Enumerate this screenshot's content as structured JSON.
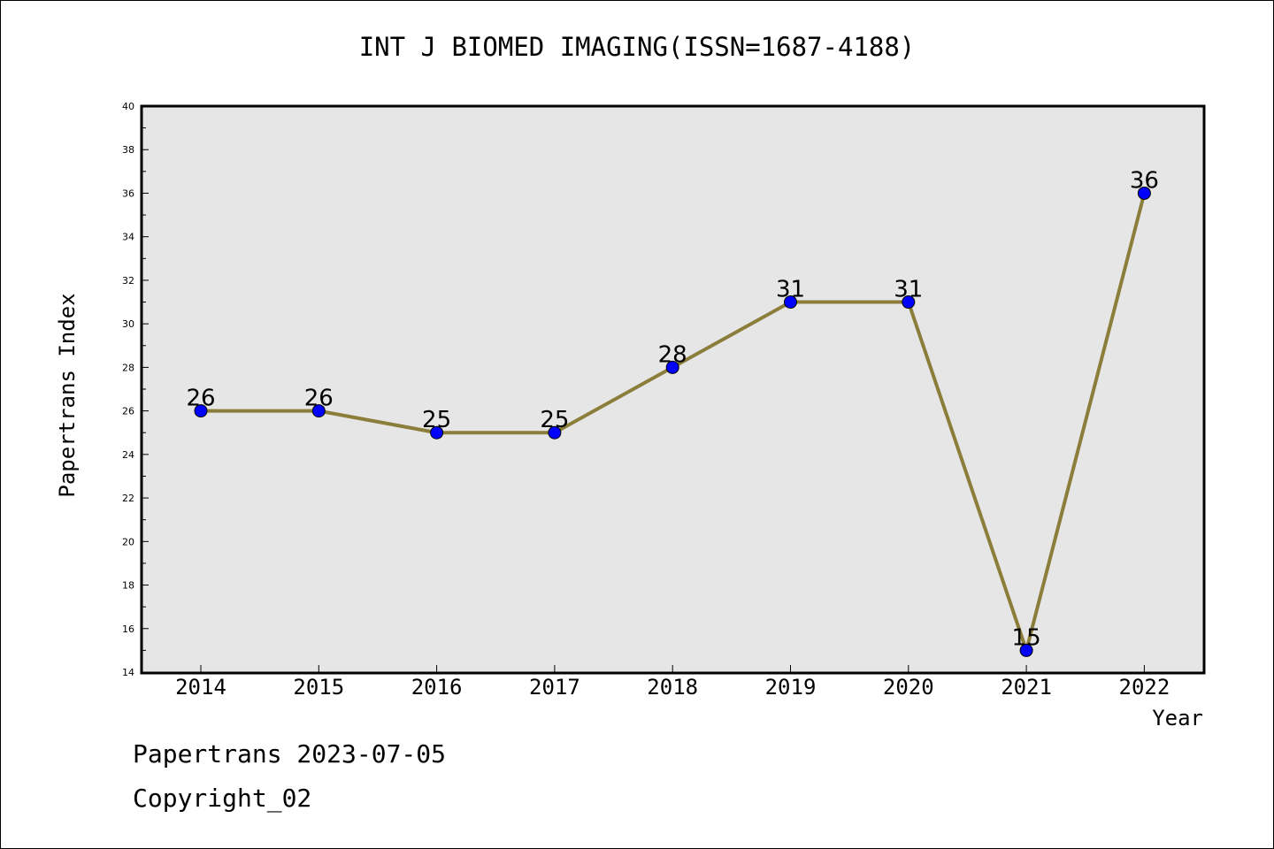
{
  "chart_data": {
    "type": "line",
    "title": "INT J BIOMED IMAGING(ISSN=1687-4188)",
    "xlabel": "Year",
    "ylabel": "Papertrans Index",
    "categories": [
      "2014",
      "2015",
      "2016",
      "2017",
      "2018",
      "2019",
      "2020",
      "2021",
      "2022"
    ],
    "series": [
      {
        "values": [
          26,
          26,
          25,
          25,
          28,
          31,
          31,
          15,
          36
        ]
      }
    ],
    "ylim": [
      14,
      40
    ],
    "yticks": [
      "14",
      "16",
      "18",
      "20",
      "22",
      "24",
      "26",
      "28",
      "30",
      "32",
      "34",
      "36",
      "38",
      "40"
    ],
    "data_labels": [
      "26",
      "26",
      "25",
      "25",
      "28",
      "31",
      "31",
      "15",
      "36"
    ],
    "grid": false,
    "colors": {
      "line": "#8B7D3A",
      "marker": "#0000FF",
      "plot_bg": "#E6E6E6"
    }
  },
  "footer": {
    "line1": "Papertrans 2023-07-05",
    "line2": "Copyright_02"
  }
}
